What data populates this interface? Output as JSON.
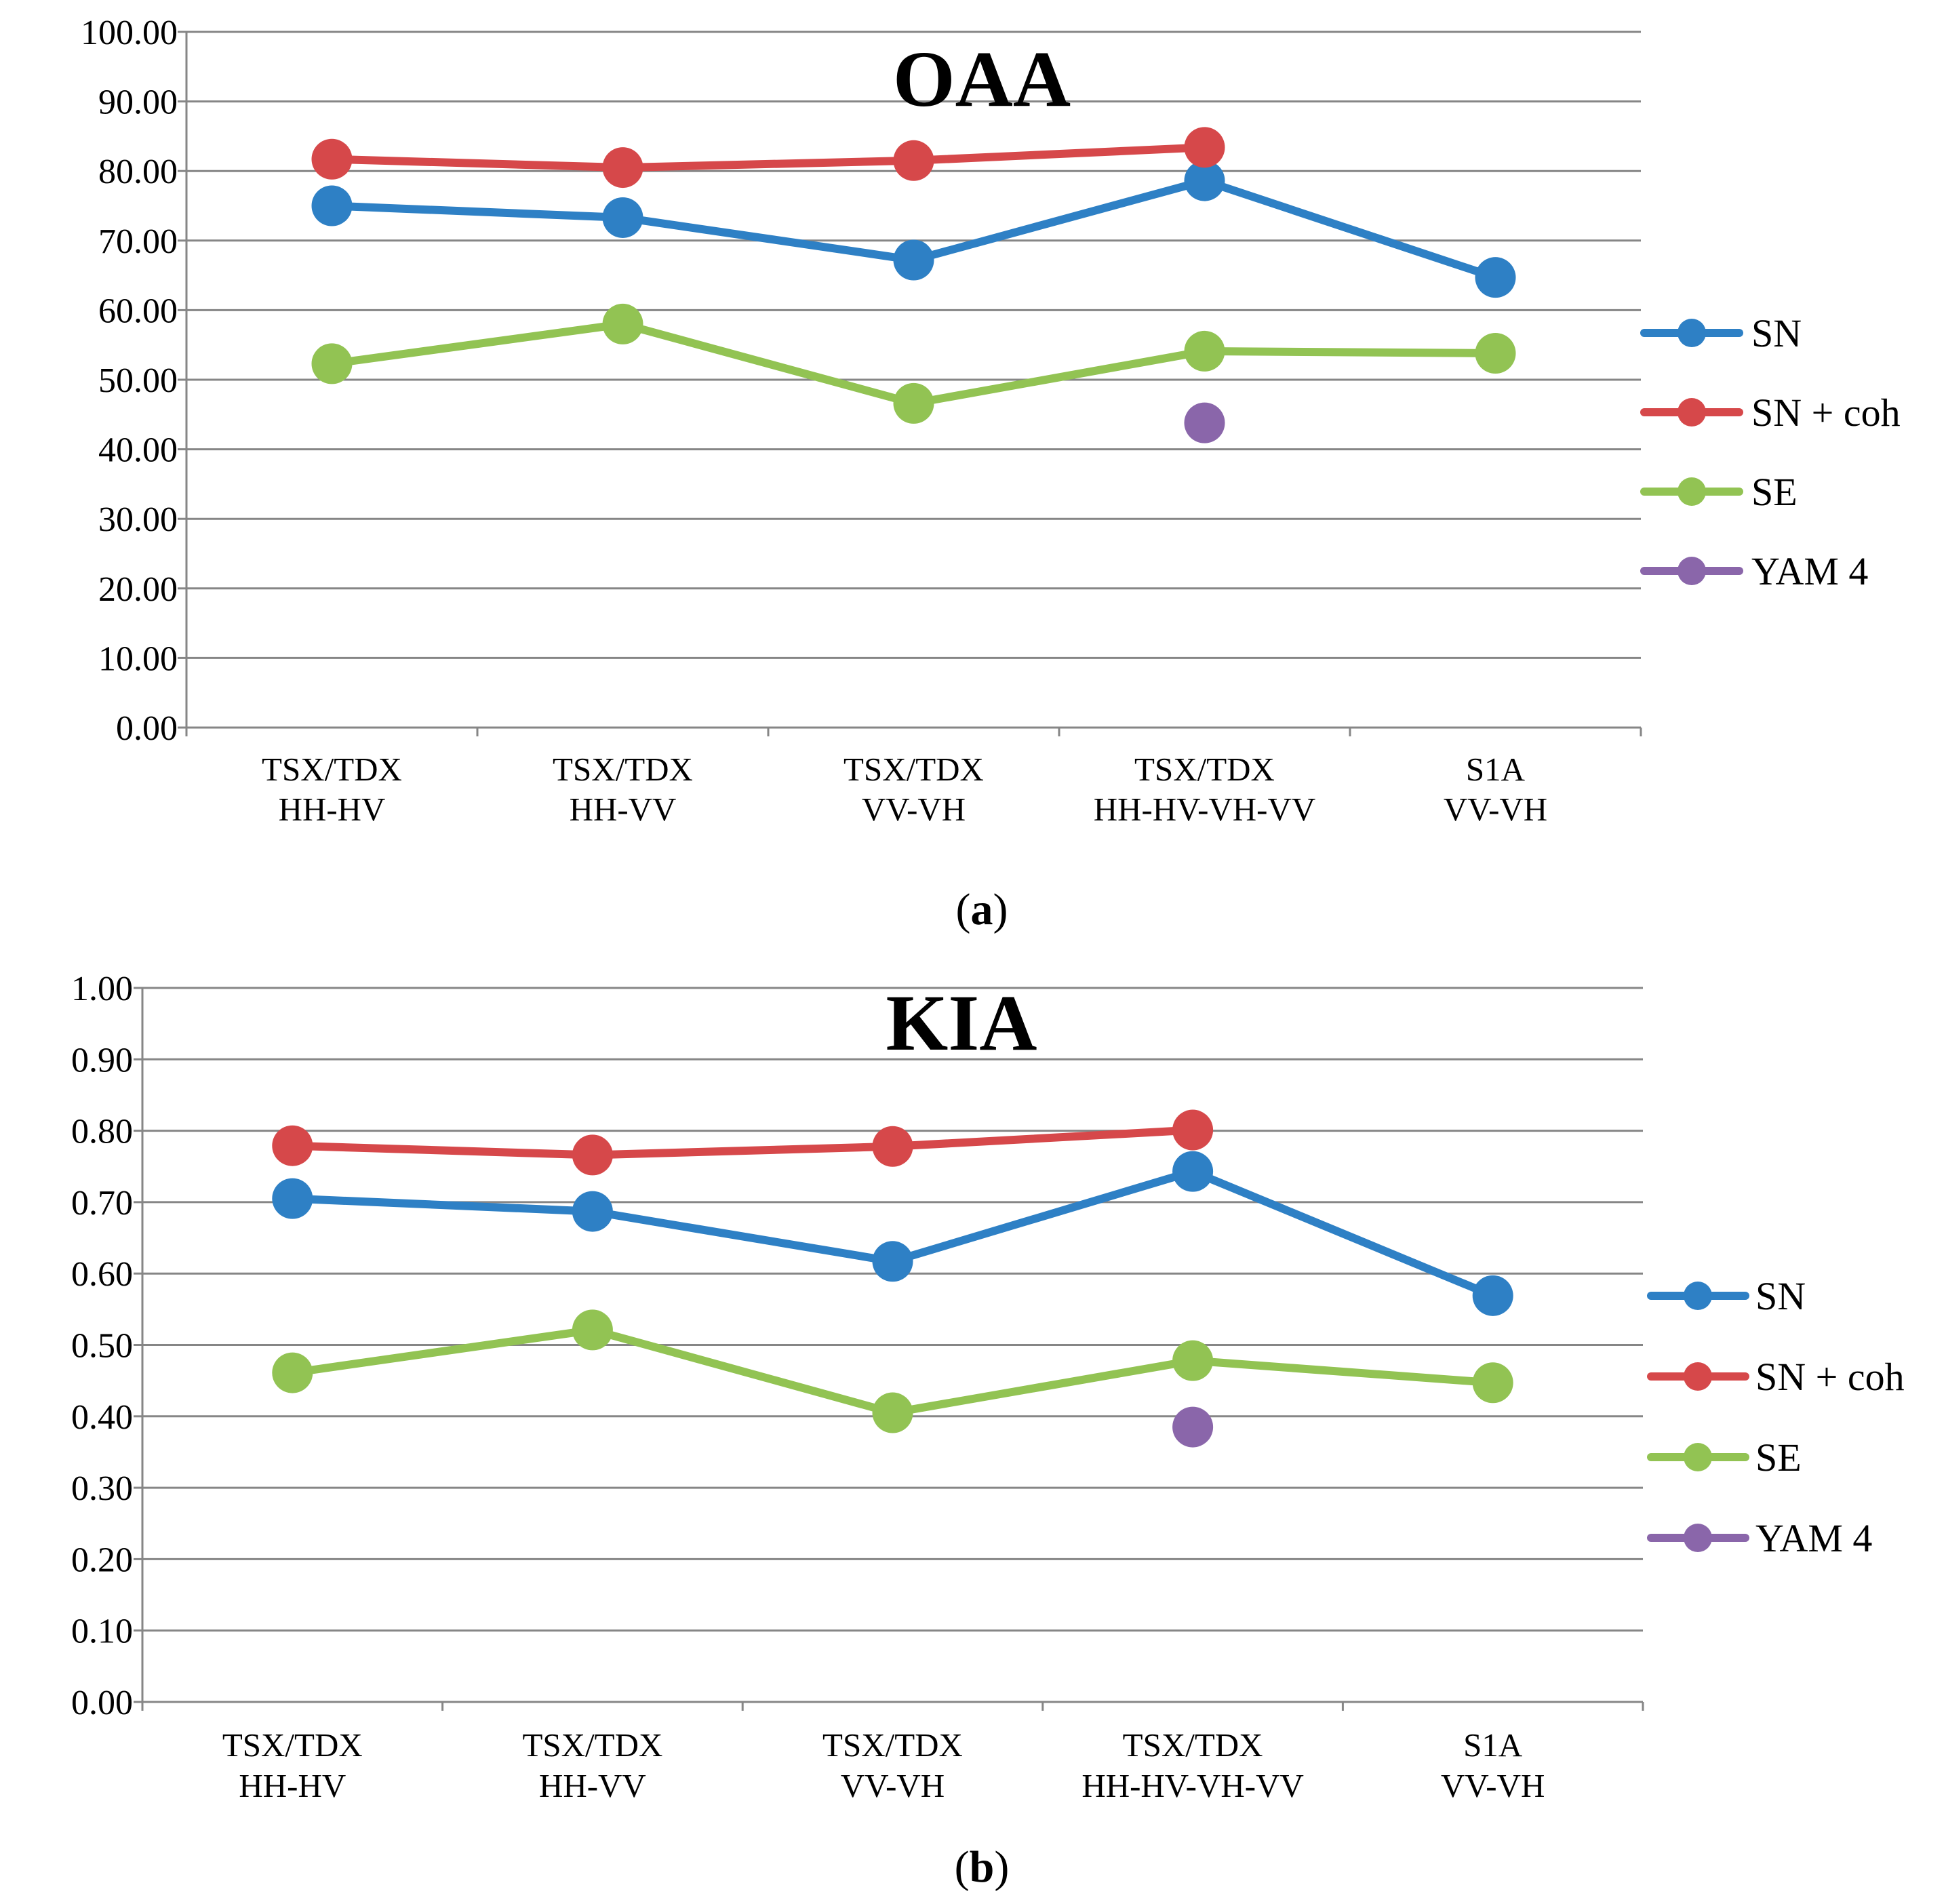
{
  "chart_data": [
    {
      "type": "line",
      "title": "OAA",
      "caption_paren_open": "(",
      "caption_letter": "a",
      "caption_paren_close": ")",
      "xlabel": "",
      "ylabel": "",
      "ylim": [
        0,
        100
      ],
      "ytick_step": 10,
      "ytick_labels": [
        "0.00",
        "10.00",
        "20.00",
        "30.00",
        "40.00",
        "50.00",
        "60.00",
        "70.00",
        "80.00",
        "90.00",
        "100.00"
      ],
      "categories": [
        [
          "TSX/TDX",
          "HH-HV"
        ],
        [
          "TSX/TDX",
          "HH-VV"
        ],
        [
          "TSX/TDX",
          "VV-VH"
        ],
        [
          "TSX/TDX",
          "HH-HV-VH-VV"
        ],
        [
          "S1A",
          "VV-VH"
        ]
      ],
      "legend_position": "right",
      "grid": true,
      "series": [
        {
          "name": "SN",
          "color": "#2e80c5",
          "values": [
            75.0,
            73.3,
            67.2,
            78.6,
            64.7
          ]
        },
        {
          "name": "SN + coh",
          "color": "#d6484a",
          "values": [
            81.7,
            80.5,
            81.5,
            83.4,
            null
          ]
        },
        {
          "name": "SE",
          "color": "#92c353",
          "values": [
            52.3,
            58.0,
            46.6,
            54.1,
            53.8
          ]
        },
        {
          "name": "YAM 4",
          "color": "#8a66aa",
          "values": [
            null,
            null,
            null,
            43.8,
            null
          ]
        }
      ]
    },
    {
      "type": "line",
      "title": "KIA",
      "caption_paren_open": "(",
      "caption_letter": "b",
      "caption_paren_close": ")",
      "xlabel": "",
      "ylabel": "",
      "ylim": [
        0,
        1
      ],
      "ytick_step": 0.1,
      "ytick_labels": [
        "0.00",
        "0.10",
        "0.20",
        "0.30",
        "0.40",
        "0.50",
        "0.60",
        "0.70",
        "0.80",
        "0.90",
        "1.00"
      ],
      "categories": [
        [
          "TSX/TDX",
          "HH-HV"
        ],
        [
          "TSX/TDX",
          "HH-VV"
        ],
        [
          "TSX/TDX",
          "VV-VH"
        ],
        [
          "TSX/TDX",
          "HH-HV-VH-VV"
        ],
        [
          "S1A",
          "VV-VH"
        ]
      ],
      "legend_position": "right",
      "grid": true,
      "series": [
        {
          "name": "SN",
          "color": "#2e80c5",
          "values": [
            0.705,
            0.687,
            0.617,
            0.743,
            0.569
          ]
        },
        {
          "name": "SN + coh",
          "color": "#d6484a",
          "values": [
            0.779,
            0.766,
            0.778,
            0.801,
            null
          ]
        },
        {
          "name": "SE",
          "color": "#92c353",
          "values": [
            0.461,
            0.521,
            0.405,
            0.478,
            0.447
          ]
        },
        {
          "name": "YAM 4",
          "color": "#8a66aa",
          "values": [
            null,
            null,
            null,
            0.385,
            null
          ]
        }
      ]
    }
  ]
}
